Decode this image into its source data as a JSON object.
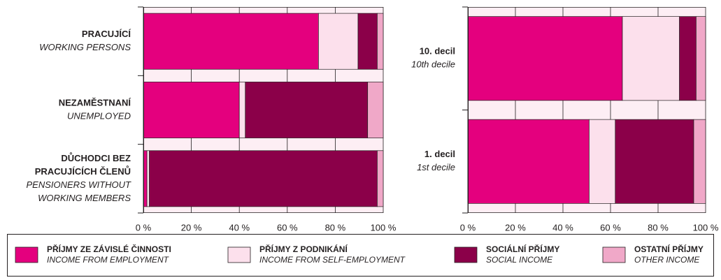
{
  "chart_data": [
    {
      "type": "stacked-bar-horizontal",
      "categories": [
        {
          "cs": [
            "PRACUJÍCÍ"
          ],
          "en": [
            "WORKING PERSONS"
          ]
        },
        {
          "cs": [
            "NEZAMĚSTNANÍ"
          ],
          "en": [
            "UNEMPLOYED"
          ]
        },
        {
          "cs": [
            "DŮCHODCI BEZ",
            "PRACUJÍCÍCH ČLENŮ"
          ],
          "en": [
            "PENSIONERS WITHOUT",
            "WORKING MEMBERS"
          ]
        }
      ],
      "series": [
        {
          "name": "PŘÍJMY ZE ZÁVISLÉ ČINNOSTI",
          "name_en": "INCOME FROM EMPLOYMENT",
          "color": "#e4007e",
          "values": [
            73,
            40,
            1.5
          ]
        },
        {
          "name": "PŘÍJMY Z PODNIKÁNÍ",
          "name_en": "INCOME FROM SELF-EMPLOYMENT",
          "color": "#fce0ec",
          "values": [
            16.5,
            2.5,
            1
          ]
        },
        {
          "name": "SOCIÁLNÍ PŘÍJMY",
          "name_en": "SOCIAL INCOME",
          "color": "#8b0049",
          "values": [
            8,
            51,
            95
          ]
        },
        {
          "name": "OSTATNÍ PŘÍJMY",
          "name_en": "OTHER INCOME",
          "color": "#f0a8c8",
          "values": [
            2.5,
            6.5,
            2.5
          ]
        }
      ],
      "xlim": [
        0,
        100
      ],
      "xticks": [
        {
          "value": 0,
          "label": "0 %"
        },
        {
          "value": 20,
          "label": "20 %"
        },
        {
          "value": 40,
          "label": "40 %"
        },
        {
          "value": 60,
          "label": "60 %"
        },
        {
          "value": 80,
          "label": "80 %"
        },
        {
          "value": 100,
          "label": "100 %"
        }
      ],
      "grid": true
    },
    {
      "type": "stacked-bar-horizontal",
      "categories": [
        {
          "cs": [
            "10. decil"
          ],
          "en": [
            "10th decile"
          ]
        },
        {
          "cs": [
            "1. decil"
          ],
          "en": [
            "1st decile"
          ]
        }
      ],
      "series": [
        {
          "name": "PŘÍJMY ZE ZÁVISLÉ ČINNOSTI",
          "color": "#e4007e",
          "values": [
            65,
            51
          ]
        },
        {
          "name": "PŘÍJMY Z PODNIKÁNÍ",
          "color": "#fce0ec",
          "values": [
            24,
            11
          ]
        },
        {
          "name": "SOCIÁLNÍ PŘÍJMY",
          "color": "#8b0049",
          "values": [
            7,
            33
          ]
        },
        {
          "name": "OSTATNÍ PŘÍJMY",
          "color": "#f0a8c8",
          "values": [
            4,
            5
          ]
        }
      ],
      "xlim": [
        0,
        100
      ],
      "xticks": [
        {
          "value": 0,
          "label": "0 %"
        },
        {
          "value": 20,
          "label": "20 %"
        },
        {
          "value": 40,
          "label": "40 %"
        },
        {
          "value": 60,
          "label": "60 %"
        },
        {
          "value": 80,
          "label": "80 %"
        },
        {
          "value": 100,
          "label": "100 %"
        }
      ],
      "grid": true
    }
  ]
}
